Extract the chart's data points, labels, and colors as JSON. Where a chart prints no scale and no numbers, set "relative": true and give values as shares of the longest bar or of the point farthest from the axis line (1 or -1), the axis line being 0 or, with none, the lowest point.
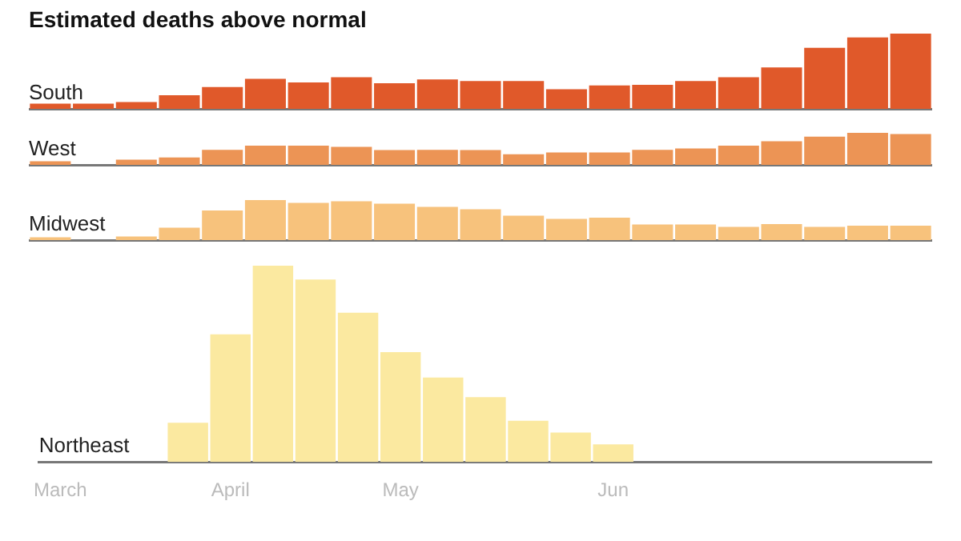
{
  "chart_data": [
    {
      "type": "bar",
      "title": "Estimated deaths above normal",
      "relative": true,
      "tick_labels": false,
      "series": [
        {
          "name": "South",
          "color": "#e0592a",
          "values": [
            0.07,
            0.07,
            0.09,
            0.18,
            0.29,
            0.4,
            0.35,
            0.42,
            0.34,
            0.39,
            0.37,
            0.37,
            0.26,
            0.31,
            0.32,
            0.37,
            0.42,
            0.55,
            0.81,
            0.95,
            1
          ]
        }
      ]
    },
    {
      "type": "bar",
      "relative": true,
      "tick_labels": false,
      "series": [
        {
          "name": "West",
          "color": "#ec9455",
          "values": [
            0.11,
            0,
            0.16,
            0.23,
            0.47,
            0.6,
            0.6,
            0.56,
            0.46,
            0.47,
            0.46,
            0.33,
            0.39,
            0.39,
            0.47,
            0.51,
            0.6,
            0.74,
            0.88,
            1,
            0.96
          ]
        }
      ]
    },
    {
      "type": "bar",
      "relative": true,
      "tick_labels": false,
      "series": [
        {
          "name": "Midwest",
          "color": "#f7c27c",
          "values": [
            0.07,
            0,
            0.09,
            0.31,
            0.74,
            1,
            0.93,
            0.97,
            0.91,
            0.83,
            0.77,
            0.61,
            0.53,
            0.56,
            0.39,
            0.39,
            0.33,
            0.4,
            0.33,
            0.36,
            0.36
          ]
        }
      ]
    },
    {
      "type": "bar",
      "relative": true,
      "tick_labels": "x",
      "categories": [
        "March",
        null,
        null,
        null,
        "April",
        null,
        null,
        null,
        "May",
        null,
        null,
        null,
        null,
        "Jun",
        null,
        null,
        null,
        null,
        null,
        null,
        null
      ],
      "series": [
        {
          "name": "Northeast",
          "color": "#fbe9a0",
          "values": [
            0,
            0,
            0,
            0.2,
            0.65,
            1,
            0.93,
            0.76,
            0.56,
            0.43,
            0.33,
            0.21,
            0.15,
            0.09,
            null,
            null,
            null,
            null,
            null,
            null,
            null
          ]
        }
      ]
    }
  ]
}
